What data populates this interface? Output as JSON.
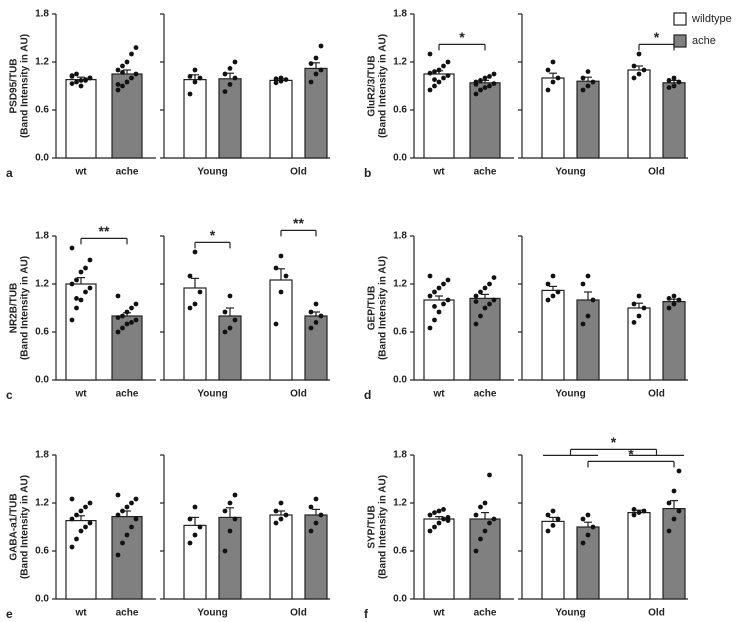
{
  "legend": [
    {
      "name": "wildtype",
      "color": "#ffffff"
    },
    {
      "name": "ache",
      "color": "#808080"
    }
  ],
  "chart_data": [
    {
      "type": "bar",
      "label": "a",
      "y_label": [
        "PSD95/TUB",
        "(Band Intensity in AU)"
      ],
      "ylim": [
        0,
        1.8
      ],
      "yticks": [
        {
          "value": 0,
          "label": "0.0"
        },
        0.6,
        1.2,
        1.8
      ],
      "left": {
        "categories": [
          "wt",
          "ache"
        ],
        "values": [
          0.98,
          1.05
        ],
        "errors": [
          0.03,
          0.05
        ],
        "points": [
          [
            0.93,
            0.95,
            0.97,
            0.98,
            1.0,
            1.02,
            1.05,
            0.9,
            0.97,
            1.0,
            1.03
          ],
          [
            0.85,
            0.9,
            0.95,
            1.0,
            1.05,
            1.1,
            1.15,
            1.2,
            1.3,
            1.38,
            0.92,
            1.07
          ]
        ]
      },
      "right": {
        "categories": [
          "Young",
          "Old"
        ],
        "series": [
          {
            "values": [
              0.98,
              0.97
            ],
            "errors": [
              0.06,
              0.02
            ],
            "points": [
              [
                0.8,
                0.95,
                1.0,
                1.02,
                1.1
              ],
              [
                0.94,
                0.96,
                0.98,
                0.99,
                1.0
              ]
            ]
          },
          {
            "values": [
              0.99,
              1.12
            ],
            "errors": [
              0.07,
              0.07
            ],
            "points": [
              [
                0.83,
                0.92,
                1.0,
                1.05,
                1.12,
                1.2
              ],
              [
                0.95,
                1.05,
                1.1,
                1.18,
                1.25,
                1.4
              ]
            ]
          }
        ]
      },
      "annotations": []
    },
    {
      "type": "bar",
      "label": "b",
      "y_label": [
        "GluR2/3/TUB",
        "(Band Intensity in AU)"
      ],
      "ylim": [
        0,
        1.8
      ],
      "yticks": [
        {
          "value": 0,
          "label": "0.0"
        },
        0.6,
        1.2,
        1.8
      ],
      "left": {
        "categories": [
          "wt",
          "ache"
        ],
        "values": [
          1.05,
          0.94
        ],
        "errors": [
          0.04,
          0.03
        ],
        "points": [
          [
            0.85,
            0.9,
            0.95,
            1.0,
            1.03,
            1.06,
            1.08,
            1.1,
            1.15,
            1.2,
            1.3,
            0.98
          ],
          [
            0.8,
            0.85,
            0.88,
            0.9,
            0.93,
            0.95,
            0.97,
            1.0,
            1.02,
            1.05,
            0.92
          ]
        ]
      },
      "right": {
        "categories": [
          "Young",
          "Old"
        ],
        "series": [
          {
            "values": [
              1.0,
              1.1
            ],
            "errors": [
              0.06,
              0.05
            ],
            "points": [
              [
                0.85,
                0.95,
                1.0,
                1.1,
                1.2
              ],
              [
                1.0,
                1.05,
                1.1,
                1.15,
                1.3
              ]
            ]
          },
          {
            "values": [
              0.96,
              0.94
            ],
            "errors": [
              0.05,
              0.03
            ],
            "points": [
              [
                0.85,
                0.9,
                0.95,
                1.0,
                1.08
              ],
              [
                0.88,
                0.9,
                0.95,
                0.97,
                1.0
              ]
            ]
          }
        ]
      },
      "annotations": [
        {
          "side": "left",
          "from": [
            0
          ],
          "to": [
            1
          ],
          "text": "*"
        },
        {
          "side": "right",
          "from": [
            2
          ],
          "to": [
            3
          ],
          "text": "*"
        }
      ]
    },
    {
      "type": "bar",
      "label": "c",
      "y_label": [
        "NR2B/TUB",
        "(Band Intensity in AU)"
      ],
      "ylim": [
        0,
        1.8
      ],
      "yticks": [
        {
          "value": 0,
          "label": "0.0"
        },
        0.6,
        1.2,
        1.8
      ],
      "left": {
        "categories": [
          "wt",
          "ache"
        ],
        "values": [
          1.2,
          0.8
        ],
        "errors": [
          0.08,
          0.04
        ],
        "points": [
          [
            0.75,
            0.9,
            1.0,
            1.1,
            1.15,
            1.2,
            1.25,
            1.35,
            1.4,
            1.5,
            1.65,
            1.02
          ],
          [
            0.6,
            0.65,
            0.7,
            0.72,
            0.75,
            0.78,
            0.8,
            0.85,
            0.9,
            0.95,
            1.05
          ]
        ]
      },
      "right": {
        "categories": [
          "Young",
          "Old"
        ],
        "series": [
          {
            "values": [
              1.15,
              1.25
            ],
            "errors": [
              0.12,
              0.14
            ],
            "points": [
              [
                0.9,
                0.95,
                1.1,
                1.3,
                1.6
              ],
              [
                0.7,
                1.1,
                1.3,
                1.4,
                1.55
              ]
            ]
          },
          {
            "values": [
              0.8,
              0.8
            ],
            "errors": [
              0.1,
              0.05
            ],
            "points": [
              [
                0.6,
                0.65,
                0.75,
                0.85,
                1.05
              ],
              [
                0.65,
                0.72,
                0.8,
                0.85,
                0.95
              ]
            ]
          }
        ]
      },
      "annotations": [
        {
          "side": "left",
          "from": [
            0
          ],
          "to": [
            1
          ],
          "text": "**"
        },
        {
          "side": "right",
          "from": [
            0
          ],
          "to": [
            1
          ],
          "text": "*"
        },
        {
          "side": "right",
          "from": [
            2
          ],
          "to": [
            3
          ],
          "text": "**"
        }
      ]
    },
    {
      "type": "bar",
      "label": "d",
      "y_label": [
        "GEP/TUB",
        "(Band Intensity in AU)"
      ],
      "ylim": [
        0,
        1.8
      ],
      "yticks": [
        {
          "value": 0,
          "label": "0.0"
        },
        0.6,
        1.2,
        1.8
      ],
      "left": {
        "categories": [
          "wt",
          "ache"
        ],
        "values": [
          1.0,
          1.02
        ],
        "errors": [
          0.05,
          0.05
        ],
        "points": [
          [
            0.65,
            0.75,
            0.85,
            0.95,
            1.0,
            1.05,
            1.1,
            1.15,
            1.2,
            1.25,
            1.3,
            0.92
          ],
          [
            0.7,
            0.8,
            0.9,
            0.95,
            1.0,
            1.05,
            1.1,
            1.15,
            1.2,
            1.28,
            0.98
          ]
        ]
      },
      "right": {
        "categories": [
          "Young",
          "Old"
        ],
        "series": [
          {
            "values": [
              1.12,
              0.9
            ],
            "errors": [
              0.05,
              0.06
            ],
            "points": [
              [
                1.0,
                1.05,
                1.1,
                1.2,
                1.3
              ],
              [
                0.72,
                0.8,
                0.9,
                0.95,
                1.05
              ]
            ]
          },
          {
            "values": [
              1.0,
              0.98
            ],
            "errors": [
              0.1,
              0.03
            ],
            "points": [
              [
                0.7,
                0.8,
                1.0,
                1.2,
                1.3
              ],
              [
                0.9,
                0.95,
                1.0,
                1.02,
                1.05
              ]
            ]
          }
        ]
      },
      "annotations": []
    },
    {
      "type": "bar",
      "label": "e",
      "y_label": [
        "GABA-a1/TUB",
        "(Band Intensity in AU)"
      ],
      "ylim": [
        0,
        1.8
      ],
      "yticks": [
        {
          "value": 0,
          "label": "0.0"
        },
        0.6,
        1.2,
        1.8
      ],
      "left": {
        "categories": [
          "wt",
          "ache"
        ],
        "values": [
          0.98,
          1.03
        ],
        "errors": [
          0.06,
          0.07
        ],
        "points": [
          [
            0.65,
            0.75,
            0.85,
            0.9,
            0.95,
            1.0,
            1.05,
            1.1,
            1.15,
            1.2,
            1.25
          ],
          [
            0.55,
            0.7,
            0.8,
            0.9,
            1.0,
            1.05,
            1.1,
            1.15,
            1.2,
            1.25,
            1.3
          ]
        ]
      },
      "right": {
        "categories": [
          "Young",
          "Old"
        ],
        "series": [
          {
            "values": [
              0.92,
              1.05
            ],
            "errors": [
              0.1,
              0.05
            ],
            "points": [
              [
                0.7,
                0.8,
                0.9,
                1.0,
                1.15
              ],
              [
                0.95,
                1.0,
                1.05,
                1.1,
                1.2
              ]
            ]
          },
          {
            "values": [
              1.02,
              1.05
            ],
            "errors": [
              0.12,
              0.07
            ],
            "points": [
              [
                0.6,
                0.85,
                1.0,
                1.1,
                1.2,
                1.3
              ],
              [
                0.85,
                0.95,
                1.05,
                1.15,
                1.25
              ]
            ]
          }
        ]
      },
      "annotations": []
    },
    {
      "type": "bar",
      "label": "f",
      "y_label": [
        "SYP/TUB",
        "(Band Intensity in AU)"
      ],
      "ylim": [
        0,
        1.8
      ],
      "yticks": [
        {
          "value": 0,
          "label": "0.0"
        },
        0.6,
        1.2,
        1.8
      ],
      "left": {
        "categories": [
          "wt",
          "ache"
        ],
        "values": [
          1.0,
          1.0
        ],
        "errors": [
          0.03,
          0.08
        ],
        "points": [
          [
            0.85,
            0.9,
            0.95,
            1.0,
            1.02,
            1.05,
            1.08,
            1.1,
            1.12,
            0.98
          ],
          [
            0.6,
            0.75,
            0.85,
            0.95,
            1.0,
            1.05,
            1.15,
            1.2,
            1.55
          ]
        ]
      },
      "right": {
        "categories": [
          "Young",
          "Old"
        ],
        "series": [
          {
            "values": [
              0.97,
              1.08
            ],
            "errors": [
              0.05,
              0.03
            ],
            "points": [
              [
                0.85,
                0.92,
                1.0,
                1.05,
                1.1
              ],
              [
                1.05,
                1.08,
                1.1,
                1.12
              ]
            ]
          },
          {
            "values": [
              0.9,
              1.13
            ],
            "errors": [
              0.06,
              0.1
            ],
            "points": [
              [
                0.7,
                0.8,
                0.9,
                1.0,
                1.05
              ],
              [
                0.85,
                1.0,
                1.1,
                1.2,
                1.35,
                1.6
              ]
            ]
          }
        ]
      },
      "annotations": [
        {
          "side": "right",
          "from": [
            1
          ],
          "to": [
            3
          ],
          "text": "*"
        },
        {
          "side": "right",
          "from": [
            0,
            1
          ],
          "to": [
            2,
            3
          ],
          "text": "*"
        }
      ]
    }
  ]
}
